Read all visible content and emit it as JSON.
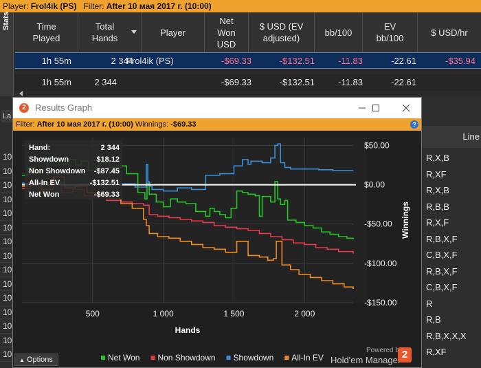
{
  "topbar": {
    "player_label": "Player:",
    "player_value": "Frol4ik (PS)",
    "filter_label": "Filter:",
    "filter_value": "After 10 мая 2017 г. (10:00)"
  },
  "stats_tab": "Stats",
  "grid": {
    "columns": [
      "Time\nPlayed",
      "Total\nHands",
      "Player",
      "Net\nWon\nUSD",
      "$ USD (EV\nadjusted)",
      "bb/100",
      "EV\nbb/100",
      "$ USD/hr"
    ],
    "selected_row": [
      "1h 55m",
      "2 344",
      "Frol4ik (PS)",
      "-$69.33",
      "-$132.51",
      "-11.83",
      "-22.61",
      "-$35.94"
    ],
    "total_row": [
      "1h 55m",
      "2 344",
      "",
      "-$69.33",
      "-$132.51",
      "-11.83",
      "-22.61",
      ""
    ]
  },
  "background": {
    "left_hint": "La",
    "line_header": "Line",
    "left_rows": [
      "10",
      "10",
      "10",
      "10",
      "10",
      "10",
      "10",
      "10",
      "10",
      "10",
      "10",
      "10",
      "10",
      "10",
      "10"
    ],
    "line_values": [
      "R,X,B",
      "R,XF",
      "R,X,B",
      "R,B,B",
      "R,X,F",
      "R,B,X,F",
      "C,B,X,F",
      "R,B,X,F",
      "C,B,X,F",
      "R",
      "R,B",
      "R,B,X,X,X",
      "R,XF"
    ]
  },
  "window": {
    "title": "Results Graph",
    "logo": "2",
    "filter_label": "Filter:",
    "filter_value": "After 10 мая 2017 г. (10:00)",
    "winnings_label": "Winnings:",
    "winnings_value": "-$69.33",
    "help": "?",
    "options": "Options",
    "powered_by": "Powered by",
    "brand": "Hold'em Manager",
    "brand_badge": "2"
  },
  "tooltip": {
    "rows": [
      {
        "label": "Hand:",
        "value": "2 344"
      },
      {
        "label": "Showdown",
        "value": "$18.12"
      },
      {
        "label": "Non Showdown",
        "value": "-$87.45"
      },
      {
        "label": "All-In EV",
        "value": "-$132.51"
      },
      {
        "label": "Net Won",
        "value": "-$69.33"
      }
    ]
  },
  "chart_data": {
    "type": "line",
    "xlabel": "Hands",
    "ylabel": "Winnings",
    "xlim": [
      0,
      2344
    ],
    "ylim": [
      -150,
      60
    ],
    "xticks": [
      500,
      1000,
      1500,
      2000
    ],
    "xtick_labels": [
      "500",
      "1 000",
      "1 500",
      "2 000"
    ],
    "yticks": [
      50,
      0,
      -50,
      -100,
      -150
    ],
    "ytick_labels": [
      "$50.00",
      "$0.00",
      "-$50.00",
      "-$100.00",
      "-$150.00"
    ],
    "grid": true,
    "legend_position": "bottom",
    "zero_line": true,
    "series": [
      {
        "name": "Net Won",
        "color": "#22c622",
        "x": [
          0,
          40,
          100,
          180,
          260,
          330,
          380,
          420,
          470,
          520,
          560,
          620,
          680,
          740,
          820,
          870,
          885,
          900,
          950,
          1000,
          1050,
          1100,
          1160,
          1230,
          1300,
          1330,
          1360,
          1400,
          1440,
          1480,
          1520,
          1560,
          1600,
          1650,
          1680,
          1700,
          1760,
          1790,
          1810,
          1830,
          1860,
          1880,
          1940,
          2000,
          2060,
          2120,
          2180,
          2240,
          2300,
          2344
        ],
        "y": [
          12,
          22,
          18,
          30,
          26,
          32,
          25,
          30,
          18,
          24,
          28,
          22,
          24,
          14,
          -10,
          -18,
          2,
          -12,
          -22,
          -28,
          -18,
          -22,
          -24,
          -34,
          -40,
          -30,
          -34,
          -38,
          -42,
          -30,
          -8,
          -10,
          -12,
          -14,
          -40,
          -15,
          -22,
          4,
          -18,
          -25,
          -20,
          -45,
          -48,
          -52,
          -55,
          -60,
          -63,
          -66,
          -68,
          -69.33
        ]
      },
      {
        "name": "Non Showdown",
        "color": "#e8394a",
        "x": [
          0,
          60,
          120,
          200,
          280,
          360,
          440,
          520,
          600,
          700,
          780,
          860,
          900,
          960,
          1040,
          1120,
          1200,
          1280,
          1360,
          1440,
          1520,
          1600,
          1680,
          1760,
          1840,
          1920,
          2000,
          2080,
          2160,
          2240,
          2344
        ],
        "y": [
          -5,
          0,
          -8,
          2,
          -10,
          -6,
          -14,
          -12,
          -20,
          -22,
          -24,
          -26,
          -38,
          -40,
          -42,
          -44,
          -46,
          -48,
          -52,
          -54,
          -56,
          -58,
          -62,
          -66,
          -70,
          -74,
          -76,
          -80,
          -82,
          -85,
          -87.45
        ]
      },
      {
        "name": "Showdown",
        "color": "#3b8fd8",
        "x": [
          0,
          100,
          200,
          300,
          400,
          500,
          600,
          700,
          800,
          880,
          890,
          900,
          905,
          920,
          1000,
          1100,
          1200,
          1300,
          1400,
          1500,
          1560,
          1600,
          1620,
          1700,
          1760,
          1790,
          1810,
          1830,
          1860,
          1900,
          2000,
          2100,
          2200,
          2300,
          2344
        ],
        "y": [
          2,
          0,
          3,
          -2,
          1,
          0,
          -1,
          1,
          -3,
          26,
          4,
          2,
          -2,
          -6,
          -8,
          -4,
          -6,
          12,
          14,
          24,
          32,
          26,
          30,
          28,
          34,
          50,
          52,
          28,
          22,
          20,
          20,
          19,
          18,
          18,
          18.12
        ]
      },
      {
        "name": "All-In EV",
        "color": "#f08a24",
        "x": [
          0,
          60,
          140,
          220,
          300,
          380,
          460,
          540,
          620,
          700,
          780,
          860,
          880,
          900,
          960,
          1040,
          1120,
          1200,
          1280,
          1360,
          1440,
          1520,
          1600,
          1680,
          1740,
          1780,
          1800,
          1840,
          1900,
          1960,
          2040,
          2120,
          2200,
          2280,
          2344
        ],
        "y": [
          -2,
          4,
          -6,
          10,
          -4,
          -2,
          -10,
          -14,
          -18,
          -24,
          -30,
          -44,
          -52,
          -62,
          -66,
          -68,
          -72,
          -76,
          -80,
          -82,
          -86,
          -72,
          -90,
          -92,
          -96,
          -94,
          -72,
          -102,
          -108,
          -114,
          -118,
          -122,
          -126,
          -130,
          -132.51
        ]
      }
    ]
  }
}
